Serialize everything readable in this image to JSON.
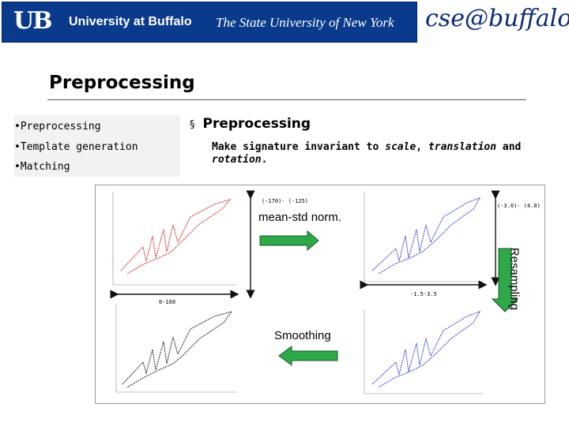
{
  "banner": {
    "monogram": "UB",
    "university": "University at Buffalo",
    "subtitle": "The State University of New York",
    "dept_logo": "cse@buffalo"
  },
  "slide": {
    "title": "Preprocessing",
    "left_list": [
      "•Preprocessing",
      "•Template generation",
      "•Matching"
    ],
    "bullet_head": "Preprocessing",
    "bullet_marker": "§",
    "description_parts": [
      {
        "text": "Make signature invariant to ",
        "italic": false
      },
      {
        "text": "scale",
        "italic": true
      },
      {
        "text": ", ",
        "italic": false
      },
      {
        "text": "translation",
        "italic": true
      },
      {
        "text": " and ",
        "italic": false
      },
      {
        "text": "rotation",
        "italic": true
      },
      {
        "text": ".",
        "italic": false
      }
    ]
  },
  "figure": {
    "range_top_left": "(-170)- (-125)",
    "range_top_right": "(-3.0)- (4.0)",
    "range_bottom_left": "0-160",
    "range_bottom_mid": "-1.5-3.5",
    "step_norm": "mean-std norm.",
    "step_resample": "Resampling",
    "step_smooth": "Smoothing",
    "colors": {
      "red": "#d42a2a",
      "blue": "#3340c8",
      "black": "#222222",
      "green": "#2fa84a"
    }
  }
}
